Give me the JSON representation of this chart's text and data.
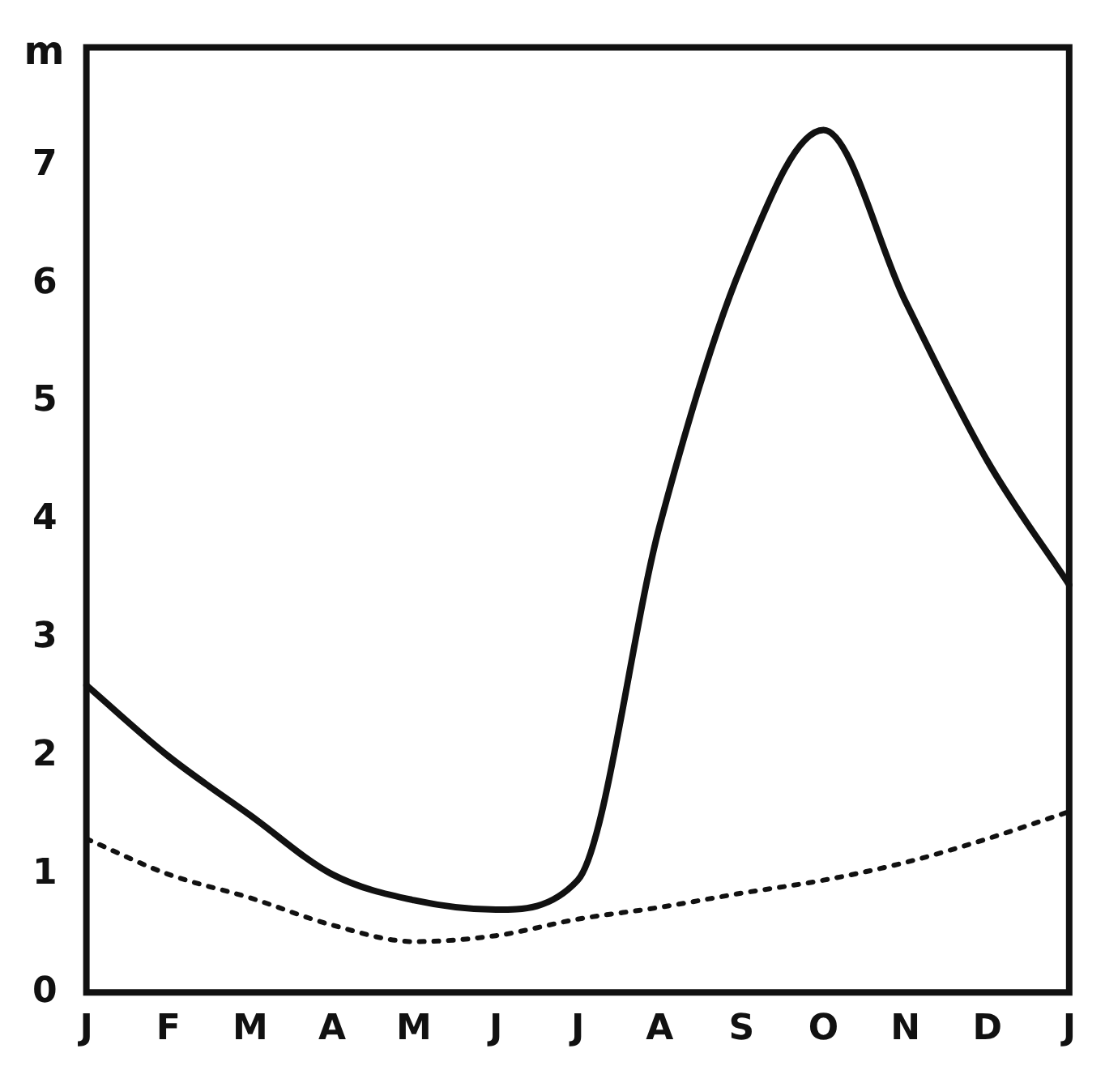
{
  "chart_data": {
    "type": "line",
    "ylabel": "m",
    "categories": [
      "J",
      "F",
      "M",
      "A",
      "M",
      "J",
      "J",
      "A",
      "S",
      "O",
      "N",
      "D",
      "J"
    ],
    "series": [
      {
        "color": "#111111",
        "line_style": "solid",
        "values": [
          2.6,
          2.0,
          1.5,
          1.0,
          0.78,
          0.7,
          0.95,
          3.95,
          6.15,
          7.3,
          5.85,
          4.5,
          3.45
        ]
      },
      {
        "color": "#111111",
        "line_style": "dotted",
        "values": [
          1.3,
          1.0,
          0.8,
          0.57,
          0.43,
          0.48,
          0.62,
          0.72,
          0.84,
          0.95,
          1.1,
          1.3,
          1.53
        ]
      }
    ],
    "ylim": [
      0,
      8
    ],
    "yticks": [
      0,
      1,
      2,
      3,
      4,
      5,
      6,
      7
    ],
    "grid": false,
    "legend": false,
    "marker": "none"
  }
}
